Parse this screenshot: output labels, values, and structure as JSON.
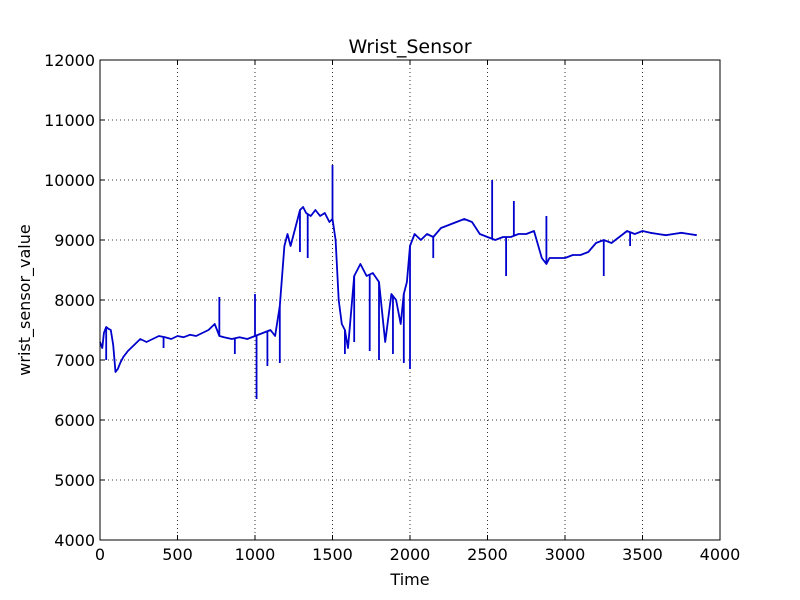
{
  "chart_data": {
    "type": "line",
    "title": "Wrist_Sensor",
    "xlabel": "Time",
    "ylabel": "wrist_sensor_value",
    "xlim": [
      0,
      4000
    ],
    "ylim": [
      4000,
      12000
    ],
    "xticks": [
      0,
      500,
      1000,
      1500,
      2000,
      2500,
      3000,
      3500,
      4000
    ],
    "yticks": [
      4000,
      5000,
      6000,
      7000,
      8000,
      9000,
      10000,
      11000,
      12000
    ],
    "xtick_labels": [
      "0",
      "500",
      "1000",
      "1500",
      "2000",
      "2500",
      "3000",
      "3500",
      "4000"
    ],
    "ytick_labels": [
      "4000",
      "5000",
      "6000",
      "7000",
      "8000",
      "9000",
      "10000",
      "11000",
      "12000"
    ],
    "grid": true,
    "line_color": "#0000cc",
    "series": [
      {
        "x": [
          0,
          15,
          25,
          40,
          55,
          70,
          85,
          100,
          115,
          130,
          150,
          180,
          220,
          260,
          300,
          340,
          380,
          420,
          460,
          500,
          540,
          580,
          620,
          660,
          700,
          740,
          770,
          800,
          850,
          900,
          950,
          1000,
          1050,
          1100,
          1130,
          1160,
          1190,
          1210,
          1230,
          1260,
          1290,
          1310,
          1330,
          1360,
          1390,
          1420,
          1450,
          1480,
          1500,
          1520,
          1540,
          1560,
          1580,
          1600,
          1640,
          1680,
          1720,
          1760,
          1800,
          1840,
          1880,
          1910,
          1940,
          1960,
          1980,
          2000,
          2030,
          2070,
          2110,
          2150,
          2200,
          2250,
          2300,
          2350,
          2400,
          2450,
          2500,
          2550,
          2600,
          2650,
          2700,
          2750,
          2800,
          2850,
          2880,
          2900,
          2950,
          3000,
          3050,
          3100,
          3150,
          3200,
          3250,
          3300,
          3350,
          3400,
          3450,
          3500,
          3550,
          3600,
          3650,
          3700,
          3750,
          3800,
          3850
        ],
        "y": [
          7300,
          7200,
          7450,
          7550,
          7520,
          7500,
          7250,
          6800,
          6850,
          6950,
          7050,
          7150,
          7250,
          7350,
          7300,
          7350,
          7400,
          7380,
          7350,
          7400,
          7380,
          7420,
          7400,
          7450,
          7500,
          7600,
          7400,
          7380,
          7350,
          7380,
          7350,
          7400,
          7450,
          7500,
          7400,
          7900,
          8900,
          9100,
          8900,
          9200,
          9500,
          9550,
          9450,
          9400,
          9500,
          9400,
          9450,
          9300,
          9350,
          9000,
          8000,
          7600,
          7500,
          7200,
          8400,
          8600,
          8400,
          8450,
          8300,
          7300,
          8100,
          8000,
          7600,
          8100,
          8300,
          8900,
          9100,
          9000,
          9100,
          9050,
          9200,
          9250,
          9300,
          9350,
          9300,
          9100,
          9050,
          9000,
          9050,
          9050,
          9100,
          9100,
          9150,
          8700,
          8600,
          8700,
          8700,
          8700,
          8750,
          8750,
          8800,
          8950,
          9000,
          8950,
          9050,
          9150,
          9100,
          9150,
          9120,
          9100,
          9080,
          9100,
          9120,
          9100,
          9080
        ]
      }
    ],
    "spikes": [
      {
        "x": 40,
        "y": 7000
      },
      {
        "x": 410,
        "y": 7200
      },
      {
        "x": 770,
        "y": 8050
      },
      {
        "x": 870,
        "y": 7100
      },
      {
        "x": 1000,
        "y": 8100
      },
      {
        "x": 1010,
        "y": 6350
      },
      {
        "x": 1080,
        "y": 6900
      },
      {
        "x": 1160,
        "y": 6950
      },
      {
        "x": 1290,
        "y": 8800
      },
      {
        "x": 1340,
        "y": 8700
      },
      {
        "x": 1500,
        "y": 10250
      },
      {
        "x": 1580,
        "y": 7100
      },
      {
        "x": 1640,
        "y": 7300
      },
      {
        "x": 1740,
        "y": 7150
      },
      {
        "x": 1800,
        "y": 7000
      },
      {
        "x": 1890,
        "y": 7100
      },
      {
        "x": 1960,
        "y": 6950
      },
      {
        "x": 2000,
        "y": 6850
      },
      {
        "x": 2150,
        "y": 8700
      },
      {
        "x": 2530,
        "y": 10000
      },
      {
        "x": 2620,
        "y": 8400
      },
      {
        "x": 2670,
        "y": 9650
      },
      {
        "x": 2880,
        "y": 9400
      },
      {
        "x": 3250,
        "y": 8400
      },
      {
        "x": 3420,
        "y": 8900
      }
    ]
  }
}
